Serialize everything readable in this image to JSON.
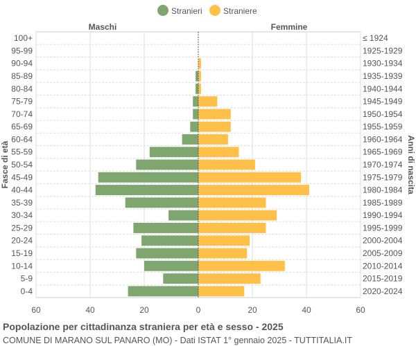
{
  "chart_data": {
    "type": "bar",
    "orientation": "horizontal-pyramid",
    "title": "Popolazione per cittadinanza straniera per età e sesso - 2025",
    "subtitle": "COMUNE DI MARANO SUL PANARO (MO) - Dati ISTAT 1° gennaio 2025 - TUTTITALIA.IT",
    "ylabel_left": "Fasce di età",
    "ylabel_right": "Anni di nascita",
    "left_header": "Maschi",
    "right_header": "Femmine",
    "xlim": [
      -60,
      60
    ],
    "xticks": [
      "60",
      "40",
      "20",
      "0",
      "20",
      "40",
      "60"
    ],
    "grid": true,
    "legend_position": "top",
    "categories": [
      "100+",
      "95-99",
      "90-94",
      "85-89",
      "80-84",
      "75-79",
      "70-74",
      "65-69",
      "60-64",
      "55-59",
      "50-54",
      "45-49",
      "40-44",
      "35-39",
      "30-34",
      "25-29",
      "20-24",
      "15-19",
      "10-14",
      "5-9",
      "0-4"
    ],
    "birth_years": [
      "≤ 1924",
      "1925-1929",
      "1930-1934",
      "1935-1939",
      "1940-1944",
      "1945-1949",
      "1950-1954",
      "1955-1959",
      "1960-1964",
      "1965-1969",
      "1970-1974",
      "1975-1979",
      "1980-1984",
      "1985-1989",
      "1990-1994",
      "1995-1999",
      "2000-2004",
      "2005-2009",
      "2010-2014",
      "2015-2019",
      "2020-2024"
    ],
    "series": [
      {
        "name": "Stranieri",
        "color": "#7fa66f",
        "values": [
          0,
          0,
          0,
          1,
          1,
          2,
          2,
          3,
          6,
          18,
          23,
          37,
          38,
          27,
          11,
          24,
          21,
          23,
          20,
          13,
          26
        ]
      },
      {
        "name": "Straniere",
        "color": "#ffc04a",
        "values": [
          0,
          0,
          1,
          1,
          1,
          7,
          12,
          12,
          11,
          15,
          21,
          38,
          41,
          25,
          29,
          25,
          19,
          18,
          32,
          23,
          17
        ]
      }
    ]
  }
}
